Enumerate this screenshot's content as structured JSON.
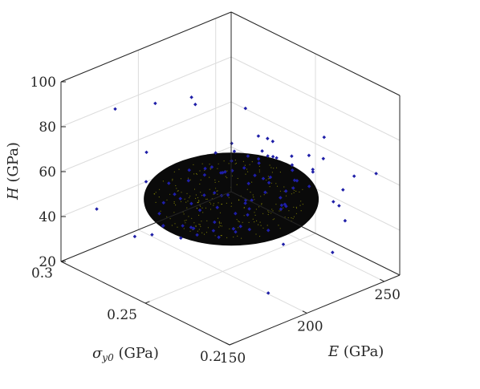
{
  "chart_data": {
    "type": "scatter",
    "title": "",
    "axes": {
      "x": {
        "label": "E (GPa)",
        "lim": [
          150,
          260
        ],
        "ticks": [
          150,
          200,
          250
        ]
      },
      "y": {
        "label": "σ_y0 (GPa)",
        "lim": [
          0.2,
          0.3
        ],
        "ticks": [
          0.2,
          0.25,
          0.3
        ]
      },
      "z": {
        "label": "H (GPa)",
        "lim": [
          20,
          100
        ],
        "ticks": [
          20,
          40,
          60,
          80,
          100
        ]
      }
    },
    "grid": true,
    "view": "3d",
    "colors": {
      "points": "#1f1fa8",
      "ellipsoid": "#0a0a0a",
      "ellipsoid_highlight": "#c8c800"
    },
    "ellipsoid": {
      "center": [
        198,
        0.244,
        55
      ],
      "radii": [
        48,
        0.045,
        17
      ]
    },
    "series": [
      {
        "points": [
          [
            150,
            0.246,
            52
          ],
          [
            154,
            0.243,
            56
          ],
          [
            158,
            0.249,
            58
          ],
          [
            161,
            0.239,
            50
          ],
          [
            164,
            0.252,
            60
          ],
          [
            166,
            0.236,
            54
          ],
          [
            168,
            0.256,
            47
          ],
          [
            170,
            0.241,
            62
          ],
          [
            172,
            0.248,
            49
          ],
          [
            173,
            0.23,
            57
          ],
          [
            175,
            0.259,
            63
          ],
          [
            177,
            0.244,
            45
          ],
          [
            178,
            0.233,
            61
          ],
          [
            179,
            0.251,
            66
          ],
          [
            181,
            0.238,
            48
          ],
          [
            182,
            0.262,
            55
          ],
          [
            183,
            0.228,
            52
          ],
          [
            184,
            0.246,
            69
          ],
          [
            185,
            0.255,
            42
          ],
          [
            186,
            0.234,
            64
          ],
          [
            187,
            0.249,
            58
          ],
          [
            188,
            0.24,
            71
          ],
          [
            189,
            0.265,
            50
          ],
          [
            190,
            0.225,
            60
          ],
          [
            191,
            0.244,
            40
          ],
          [
            192,
            0.253,
            67
          ],
          [
            193,
            0.236,
            53
          ],
          [
            194,
            0.258,
            46
          ],
          [
            195,
            0.23,
            68
          ],
          [
            196,
            0.247,
            56
          ],
          [
            197,
            0.242,
            73
          ],
          [
            198,
            0.268,
            59
          ],
          [
            199,
            0.222,
            49
          ],
          [
            200,
            0.25,
            64
          ],
          [
            201,
            0.235,
            44
          ],
          [
            202,
            0.256,
            70
          ],
          [
            203,
            0.239,
            55
          ],
          [
            204,
            0.246,
            38
          ],
          [
            205,
            0.261,
            61
          ],
          [
            206,
            0.228,
            66
          ],
          [
            207,
            0.243,
            51
          ],
          [
            208,
            0.252,
            74
          ],
          [
            209,
            0.233,
            59
          ],
          [
            210,
            0.264,
            47
          ],
          [
            211,
            0.241,
            63
          ],
          [
            212,
            0.226,
            55
          ],
          [
            213,
            0.255,
            68
          ],
          [
            214,
            0.248,
            42
          ],
          [
            215,
            0.237,
            72
          ],
          [
            216,
            0.259,
            57
          ],
          [
            217,
            0.231,
            50
          ],
          [
            218,
            0.245,
            65
          ],
          [
            219,
            0.266,
            53
          ],
          [
            220,
            0.24,
            60
          ],
          [
            221,
            0.252,
            45
          ],
          [
            222,
            0.229,
            69
          ],
          [
            223,
            0.247,
            56
          ],
          [
            224,
            0.257,
            62
          ],
          [
            225,
            0.236,
            48
          ],
          [
            226,
            0.244,
            66
          ],
          [
            227,
            0.262,
            54
          ],
          [
            228,
            0.233,
            59
          ],
          [
            229,
            0.25,
            71
          ],
          [
            230,
            0.24,
            51
          ],
          [
            231,
            0.255,
            63
          ],
          [
            232,
            0.228,
            57
          ],
          [
            233,
            0.246,
            45
          ],
          [
            234,
            0.26,
            67
          ],
          [
            235,
            0.238,
            55
          ],
          [
            236,
            0.251,
            60
          ],
          [
            238,
            0.243,
            49
          ],
          [
            240,
            0.257,
            64
          ],
          [
            242,
            0.235,
            58
          ],
          [
            244,
            0.249,
            53
          ],
          [
            246,
            0.241,
            62
          ],
          [
            249,
            0.254,
            56
          ],
          [
            252,
            0.238,
            60
          ],
          [
            255,
            0.247,
            51
          ],
          [
            258,
            0.243,
            66
          ],
          [
            185,
            0.3,
            78
          ],
          [
            200,
            0.29,
            80
          ],
          [
            215,
            0.28,
            79
          ],
          [
            175,
            0.2,
            36
          ],
          [
            222,
            0.205,
            39
          ],
          [
            241,
            0.215,
            44
          ],
          [
            248,
            0.225,
            45
          ],
          [
            256,
            0.23,
            48
          ],
          [
            260,
            0.214,
            60
          ],
          [
            254,
            0.286,
            64
          ],
          [
            230,
            0.296,
            72
          ],
          [
            160,
            0.288,
            45
          ],
          [
            168,
            0.21,
            64
          ],
          [
            205,
            0.3,
            40
          ],
          [
            192,
            0.205,
            68
          ],
          [
            236,
            0.205,
            69
          ],
          [
            178,
            0.275,
            70
          ],
          [
            212,
            0.225,
            38
          ],
          [
            245,
            0.27,
            50
          ],
          [
            165,
            0.27,
            38
          ],
          [
            228,
            0.21,
            58
          ]
        ]
      }
    ]
  }
}
